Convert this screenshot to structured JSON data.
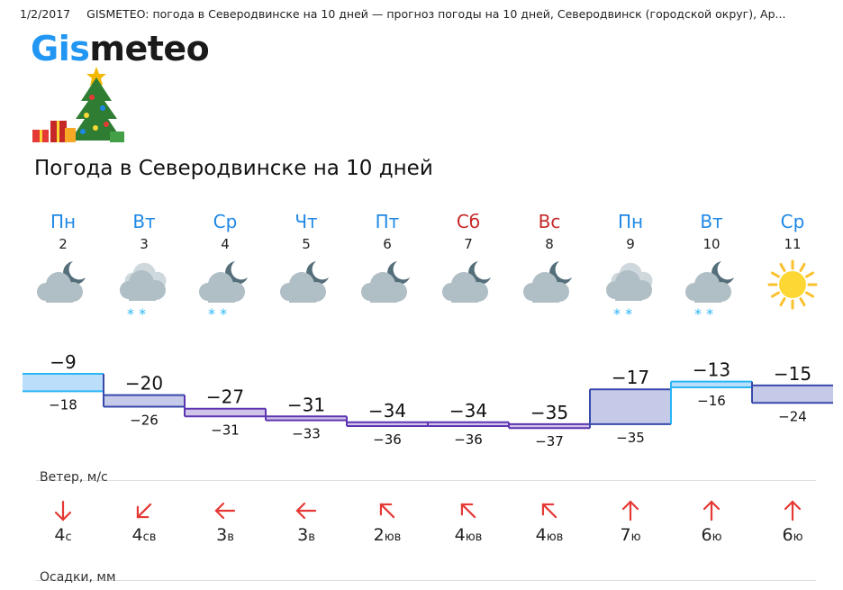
{
  "header": {
    "date": "1/2/2017",
    "page_title": "GISMETEO: погода в Северодвинске на 10 дней — прогноз погоды на 10 дней, Северодвинск (городской округ), Ар..."
  },
  "logo": {
    "part1": "Gis",
    "part2": "meteo"
  },
  "heading": "Погода в Северодвинске на 10 дней",
  "days": [
    {
      "dow": "Пн",
      "dom": "2",
      "weekend": false,
      "icon": "night-cloudy"
    },
    {
      "dow": "Вт",
      "dom": "3",
      "weekend": false,
      "icon": "cloudy-snow"
    },
    {
      "dow": "Ср",
      "dom": "4",
      "weekend": false,
      "icon": "night-cloudy-snow"
    },
    {
      "dow": "Чт",
      "dom": "5",
      "weekend": false,
      "icon": "night-cloudy"
    },
    {
      "dow": "Пт",
      "dom": "6",
      "weekend": false,
      "icon": "night-cloudy"
    },
    {
      "dow": "Сб",
      "dom": "7",
      "weekend": true,
      "icon": "night-cloudy"
    },
    {
      "dow": "Вс",
      "dom": "8",
      "weekend": true,
      "icon": "night-cloudy"
    },
    {
      "dow": "Пн",
      "dom": "9",
      "weekend": false,
      "icon": "cloudy-snow"
    },
    {
      "dow": "Вт",
      "dom": "10",
      "weekend": false,
      "icon": "night-cloudy-snow"
    },
    {
      "dow": "Ср",
      "dom": "11",
      "weekend": false,
      "icon": "sunny"
    }
  ],
  "temps": {
    "max": [
      "−9",
      "−20",
      "−27",
      "−31",
      "−34",
      "−34",
      "−35",
      "−17",
      "−13",
      "−15"
    ],
    "min": [
      "−18",
      "−26",
      "−31",
      "−33",
      "−36",
      "−36",
      "−37",
      "−35",
      "−16",
      "−24"
    ],
    "max_values": [
      -9,
      -20,
      -27,
      -31,
      -34,
      -34,
      -35,
      -17,
      -13,
      -15
    ],
    "min_values": [
      -18,
      -26,
      -31,
      -33,
      -36,
      -36,
      -37,
      -35,
      -16,
      -24
    ]
  },
  "wind": {
    "label": "Ветер, м/с",
    "items": [
      {
        "speed": "4",
        "dir": "с",
        "arrow": "arrow-down-icon",
        "angle": 180
      },
      {
        "speed": "4",
        "dir": "св",
        "arrow": "arrow-down-left-icon",
        "angle": 225
      },
      {
        "speed": "3",
        "dir": "в",
        "arrow": "arrow-left-icon",
        "angle": 270
      },
      {
        "speed": "3",
        "dir": "в",
        "arrow": "arrow-left-icon",
        "angle": 270
      },
      {
        "speed": "2",
        "dir": "юв",
        "arrow": "arrow-up-left-icon",
        "angle": 315
      },
      {
        "speed": "4",
        "dir": "юв",
        "arrow": "arrow-up-left-icon",
        "angle": 315
      },
      {
        "speed": "4",
        "dir": "юв",
        "arrow": "arrow-up-left-icon",
        "angle": 315
      },
      {
        "speed": "7",
        "dir": "ю",
        "arrow": "arrow-up-icon",
        "angle": 0
      },
      {
        "speed": "6",
        "dir": "ю",
        "arrow": "arrow-up-icon",
        "angle": 0
      },
      {
        "speed": "6",
        "dir": "ю",
        "arrow": "arrow-up-icon",
        "angle": 0
      }
    ]
  },
  "precip": {
    "label": "Осадки, мм"
  },
  "colors": {
    "weekday": "#1e88e5",
    "weekend": "#c62828",
    "wind_arrow": "#e53935",
    "snow": "#29b6f6"
  }
}
